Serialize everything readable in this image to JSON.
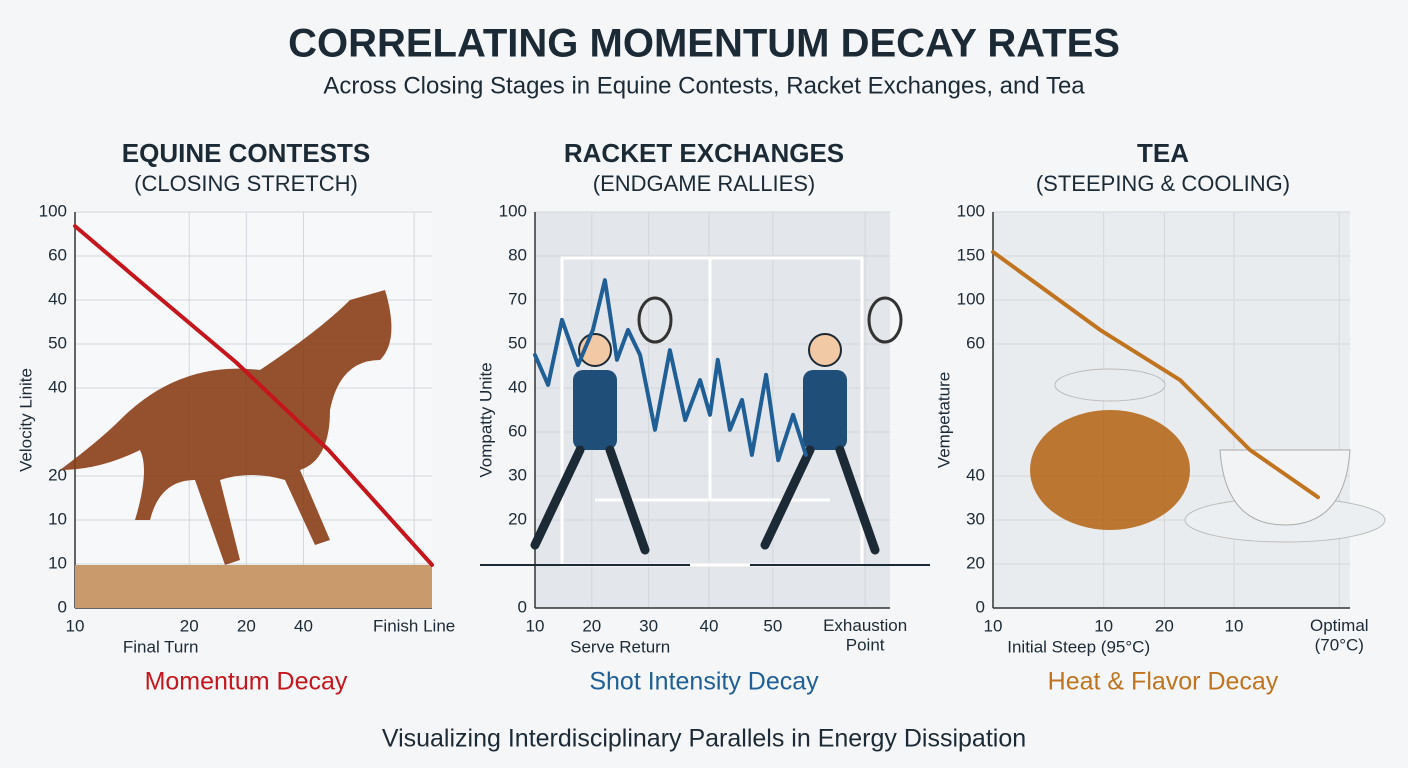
{
  "title": "CORRELATING MOMENTUM DECAY RATES",
  "subtitle": "Across Closing Stages in Equine Contests, Racket Exchanges, and Tea",
  "footer": "Visualizing Interdisciplinary Parallels in Energy Dissipation",
  "chart_data": [
    {
      "type": "line",
      "title": "EQUINE CONTESTS",
      "subtitle": "(CLOSING STRETCH)",
      "ylabel": "Velocity Linite",
      "xlabel": "Final Turn",
      "caption": "Momentum Decay",
      "xlim": [
        0,
        1
      ],
      "ylim": [
        0,
        9
      ],
      "grid": true,
      "xticks": [
        {
          "value": 0,
          "label": "10"
        },
        {
          "value": 0.32,
          "label": "20"
        },
        {
          "value": 0.48,
          "label": "20"
        },
        {
          "value": 0.64,
          "label": "40"
        },
        {
          "value": 0.95,
          "label": "Finish Line"
        }
      ],
      "yticks": [
        0,
        {
          "value": 1,
          "label": "10"
        },
        {
          "value": 2,
          "label": "10"
        },
        {
          "value": 3,
          "label": "20"
        },
        {
          "value": 5,
          "label": "40"
        },
        {
          "value": 6,
          "label": "50"
        },
        {
          "value": 7,
          "label": "40"
        },
        {
          "value": 8,
          "label": "60"
        },
        {
          "value": 9,
          "label": "100"
        }
      ],
      "series": [
        {
          "color": "#c4161c",
          "x": [
            0,
            0.21,
            0.45,
            0.71,
            1
          ],
          "values": [
            8.68,
            7.23,
            5.59,
            3.59,
            0.98
          ]
        }
      ]
    },
    {
      "type": "line",
      "title": "RACKET EXCHANGES",
      "subtitle": "(ENDGAME RALLIES)",
      "ylabel": "Vompatty Unite",
      "xlabel": "Serve Return",
      "caption": "Shot Intensity Decay",
      "xlim": [
        0,
        1
      ],
      "ylim": [
        0,
        9
      ],
      "grid": true,
      "xticks": [
        {
          "value": 0,
          "label": "10"
        },
        {
          "value": 0.16,
          "label": "20"
        },
        {
          "value": 0.32,
          "label": "30"
        },
        {
          "value": 0.49,
          "label": "40"
        },
        {
          "value": 0.67,
          "label": "50"
        },
        {
          "value": 0.93,
          "label": "Exhaustion\nPoint"
        }
      ],
      "yticks": [
        0,
        {
          "value": 2,
          "label": "20"
        },
        {
          "value": 3,
          "label": "30"
        },
        {
          "value": 4,
          "label": "60"
        },
        {
          "value": 5,
          "label": "40"
        },
        {
          "value": 6,
          "label": "50"
        },
        {
          "value": 7,
          "label": "70"
        },
        {
          "value": 8,
          "label": "80"
        },
        {
          "value": 9,
          "label": "100"
        }
      ],
      "series": [
        {
          "color": "#1f5f96",
          "x": [
            0,
            0.037,
            0.076,
            0.121,
            0.163,
            0.197,
            0.231,
            0.262,
            0.296,
            0.338,
            0.38,
            0.423,
            0.465,
            0.493,
            0.515,
            0.549,
            0.583,
            0.611,
            0.651,
            0.685,
            0.727,
            0.763
          ],
          "values": [
            5.75,
            5.07,
            6.55,
            5.52,
            6.32,
            7.45,
            5.64,
            6.32,
            5.75,
            4.05,
            5.86,
            4.27,
            5.18,
            4.39,
            5.64,
            4.05,
            4.73,
            3.48,
            5.3,
            3.36,
            4.39,
            3.48
          ]
        }
      ]
    },
    {
      "type": "line",
      "title": "TEA",
      "subtitle": "(STEEPING & COOLING)",
      "ylabel": "Vempetature",
      "xlabel": "Initial Steep (95°C)",
      "caption": "Heat & Flavor Decay",
      "xlim": [
        0,
        1
      ],
      "ylim": [
        0,
        9
      ],
      "grid": true,
      "xticks": [
        {
          "value": 0,
          "label": "10"
        },
        {
          "value": 0.31,
          "label": "10"
        },
        {
          "value": 0.48,
          "label": "20"
        },
        {
          "value": 0.675,
          "label": "10"
        },
        {
          "value": 0.97,
          "label": "Optimal\n(70°C)"
        }
      ],
      "yticks": [
        0,
        {
          "value": 1,
          "label": "20"
        },
        {
          "value": 2,
          "label": "30"
        },
        {
          "value": 3,
          "label": "40"
        },
        {
          "value": 6,
          "label": "60"
        },
        {
          "value": 7,
          "label": "100"
        },
        {
          "value": 8,
          "label": "150"
        },
        {
          "value": 9,
          "label": "100"
        }
      ],
      "series": [
        {
          "color": "#c0741f",
          "x": [
            0,
            0.3,
            0.524,
            0.72,
            0.91
          ],
          "values": [
            8.09,
            6.32,
            5.18,
            3.59,
            2.52
          ]
        }
      ]
    }
  ]
}
